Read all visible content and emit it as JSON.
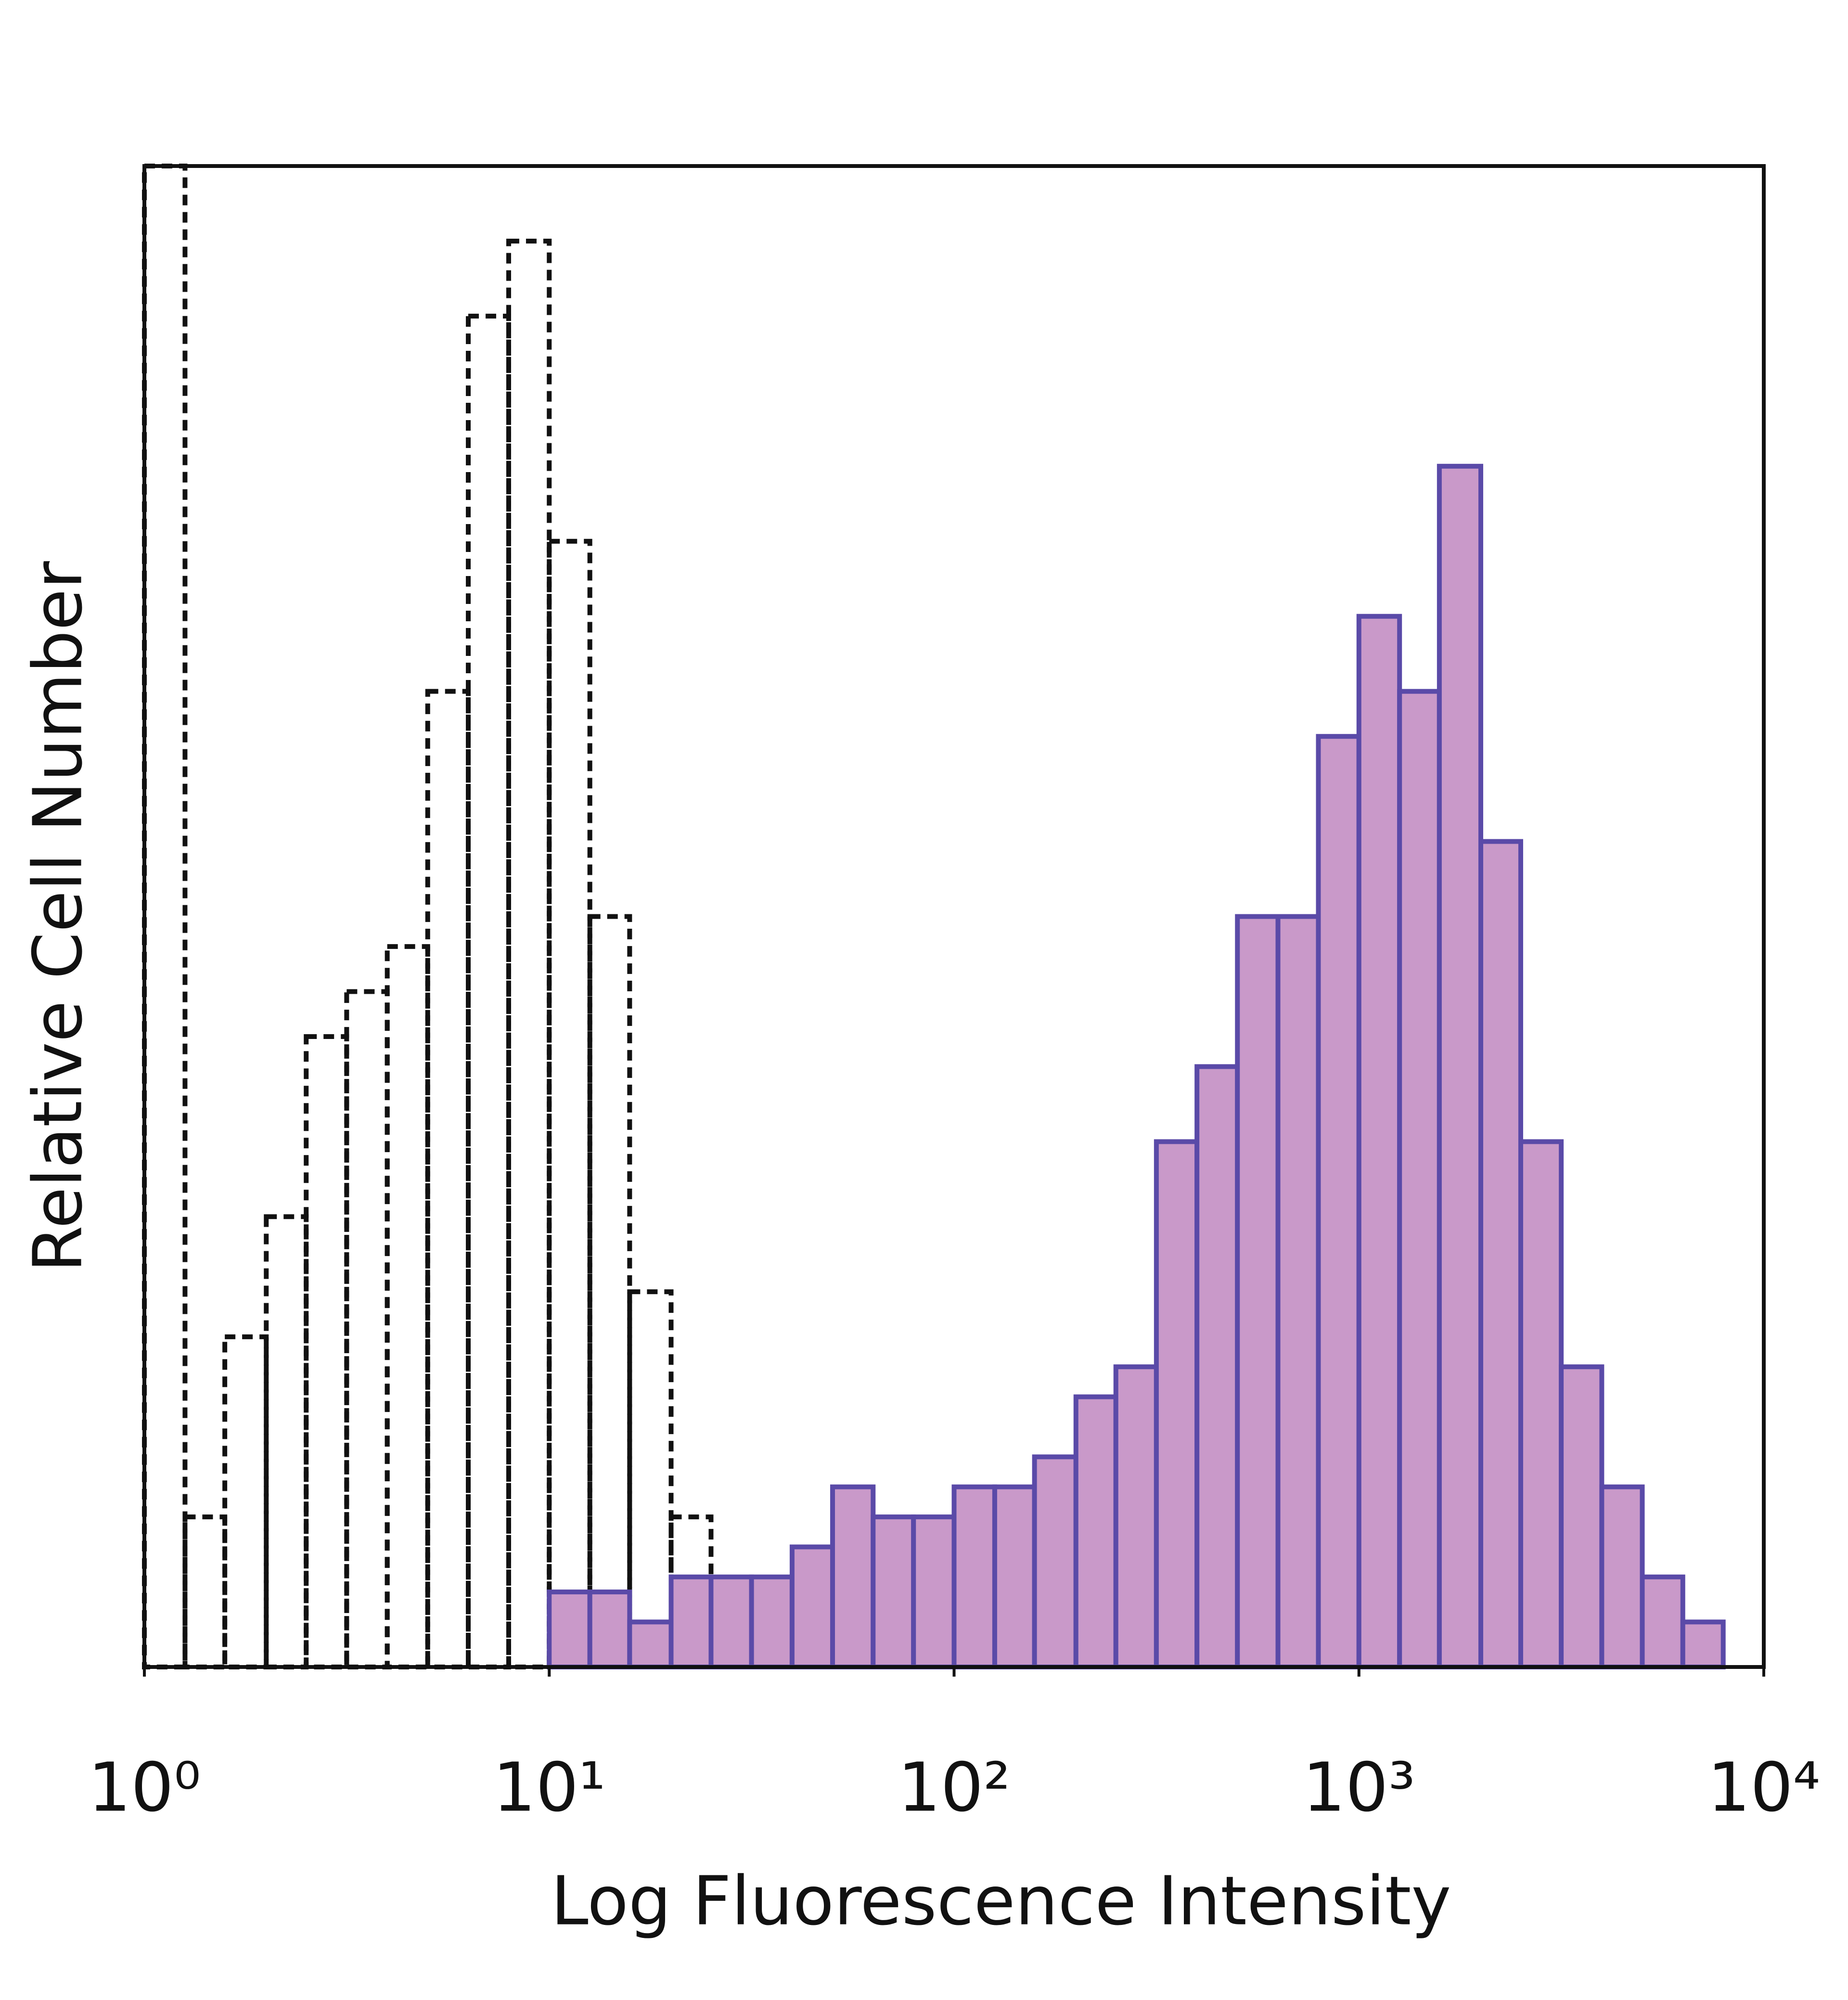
{
  "chart_data": {
    "type": "histogram",
    "x_label": "Log Fluorescence Intensity",
    "y_label": "Relative Cell Number",
    "xscale": "log",
    "xlim": [
      1,
      10000
    ],
    "xticks": [
      {
        "value": 1,
        "label": "10⁰"
      },
      {
        "value": 10,
        "label": "10¹"
      },
      {
        "value": 100,
        "label": "10²"
      },
      {
        "value": 1000,
        "label": "10³"
      },
      {
        "value": 10000,
        "label": "10⁴"
      }
    ],
    "ylim": [
      0,
      100
    ],
    "bins": [
      1,
      1.26,
      1.58,
      2,
      2.51,
      3.16,
      3.98,
      5.01,
      6.31,
      7.94,
      10,
      12.6,
      15.8,
      20,
      25.1,
      31.6,
      39.8,
      50.1,
      63.1,
      79.4,
      100,
      126,
      158,
      200,
      251,
      316,
      398,
      501,
      631,
      794,
      1000,
      1260,
      1580,
      2000,
      2510,
      3160,
      3980,
      5010,
      6310,
      7940,
      10000
    ],
    "series": [
      {
        "color": "#111111",
        "style": "dashed",
        "fill": "none",
        "values": [
          100,
          10,
          22,
          30,
          42,
          45,
          48,
          65,
          90,
          95,
          75,
          50,
          25,
          10,
          4,
          1,
          1,
          0,
          0,
          0,
          0,
          0,
          0,
          0,
          0,
          0,
          0,
          0,
          0,
          0,
          0,
          0,
          0,
          0,
          0,
          0,
          0,
          0,
          0,
          0
        ]
      },
      {
        "color": "#5a4aa8",
        "style": "solid",
        "fill": "#c999c9",
        "values": [
          0,
          0,
          0,
          0,
          0,
          0,
          0,
          0,
          0,
          0,
          5,
          5,
          3,
          6,
          6,
          6,
          8,
          12,
          10,
          10,
          12,
          12,
          14,
          18,
          20,
          35,
          40,
          50,
          50,
          62,
          70,
          65,
          80,
          55,
          35,
          20,
          12,
          6,
          3,
          0
        ]
      }
    ]
  }
}
